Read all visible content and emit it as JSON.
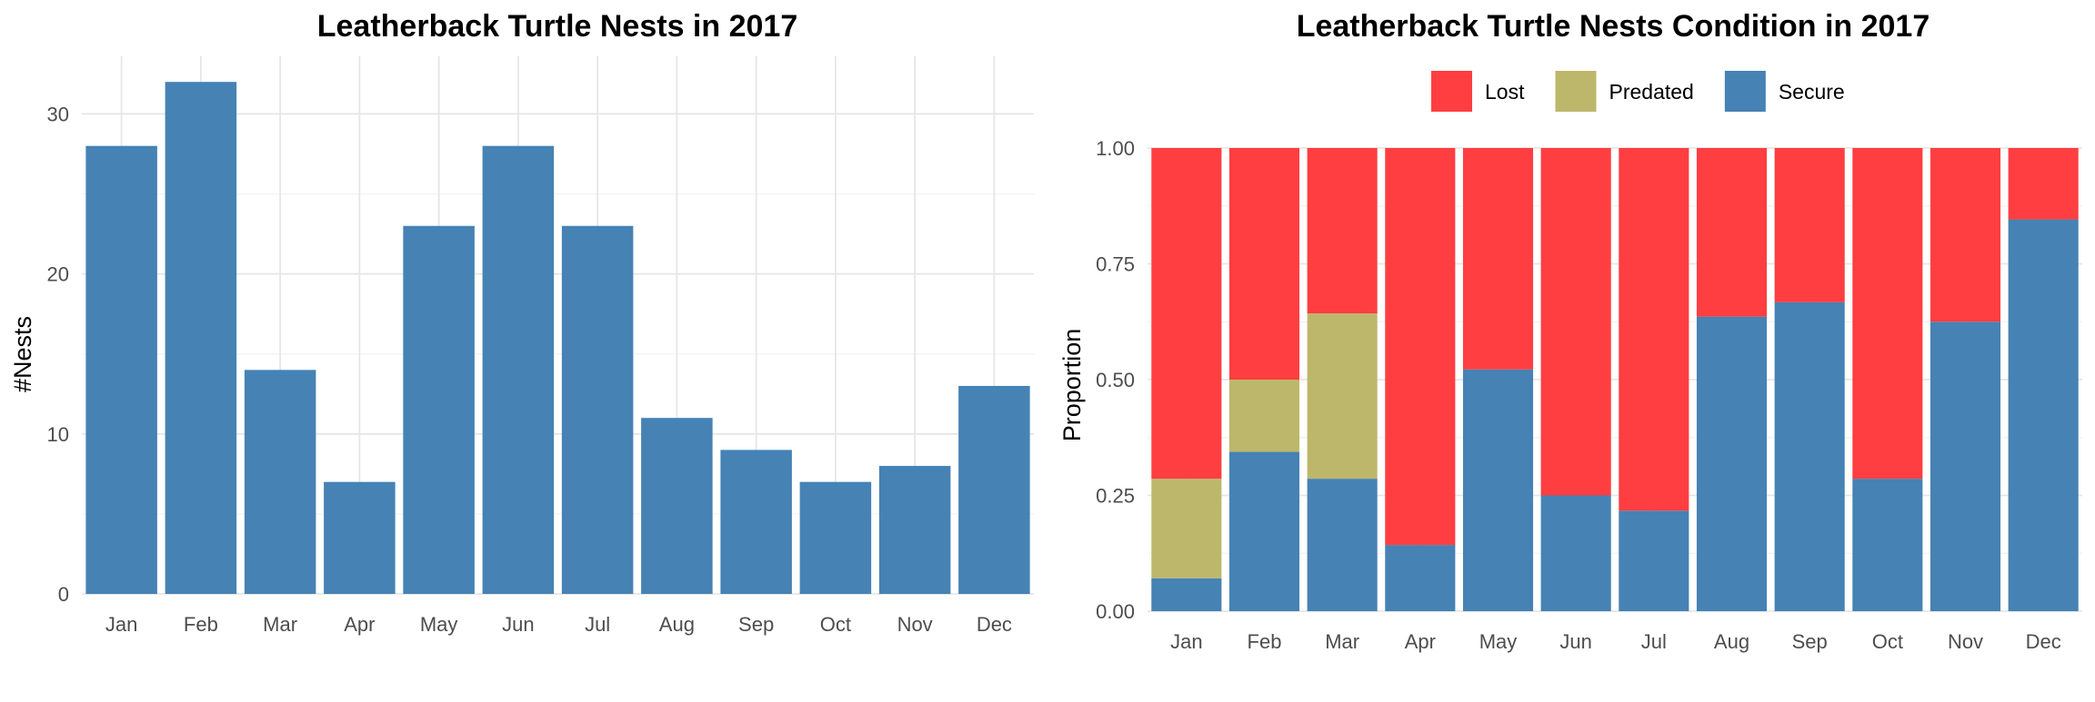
{
  "chart_data": [
    {
      "type": "bar",
      "title": "Leatherback Turtle Nests in 2017",
      "xlabel": "",
      "ylabel": "#Nests",
      "categories": [
        "Jan",
        "Feb",
        "Mar",
        "Apr",
        "May",
        "Jun",
        "Jul",
        "Aug",
        "Sep",
        "Oct",
        "Nov",
        "Dec"
      ],
      "values": [
        28,
        32,
        14,
        7,
        23,
        28,
        23,
        11,
        9,
        7,
        8,
        13
      ],
      "ylim": [
        0,
        33.6
      ],
      "yticks": [
        "0",
        "10",
        "20",
        "30"
      ],
      "ytick_values": [
        0,
        10,
        20,
        30
      ],
      "bar_color": "#4682B4",
      "grid": true
    },
    {
      "type": "bar",
      "stacked": true,
      "title": "Leatherback Turtle Nests Condition in 2017",
      "xlabel": "",
      "ylabel": "Proportion",
      "categories": [
        "Jan",
        "Feb",
        "Mar",
        "Apr",
        "May",
        "Jun",
        "Jul",
        "Aug",
        "Sep",
        "Oct",
        "Nov",
        "Dec"
      ],
      "series": [
        {
          "name": "Secure",
          "color": "#4682B4",
          "values": [
            0.071,
            0.344,
            0.286,
            0.143,
            0.522,
            0.25,
            0.217,
            0.636,
            0.667,
            0.286,
            0.625,
            0.846
          ]
        },
        {
          "name": "Predated",
          "color": "#BDB76B",
          "values": [
            0.215,
            0.156,
            0.357,
            0,
            0,
            0,
            0,
            0,
            0,
            0,
            0,
            0
          ]
        },
        {
          "name": "Lost",
          "color": "#FF3E41",
          "values": [
            0.714,
            0.5,
            0.357,
            0.857,
            0.478,
            0.75,
            0.783,
            0.364,
            0.333,
            0.714,
            0.375,
            0.154
          ]
        }
      ],
      "legend_order": [
        "Lost",
        "Predated",
        "Secure"
      ],
      "legend_position": "top",
      "ylim": [
        0,
        1
      ],
      "yticks": [
        "0.00",
        "0.25",
        "0.50",
        "0.75",
        "1.00"
      ],
      "ytick_values": [
        0,
        0.25,
        0.5,
        0.75,
        1
      ],
      "grid": true
    }
  ]
}
